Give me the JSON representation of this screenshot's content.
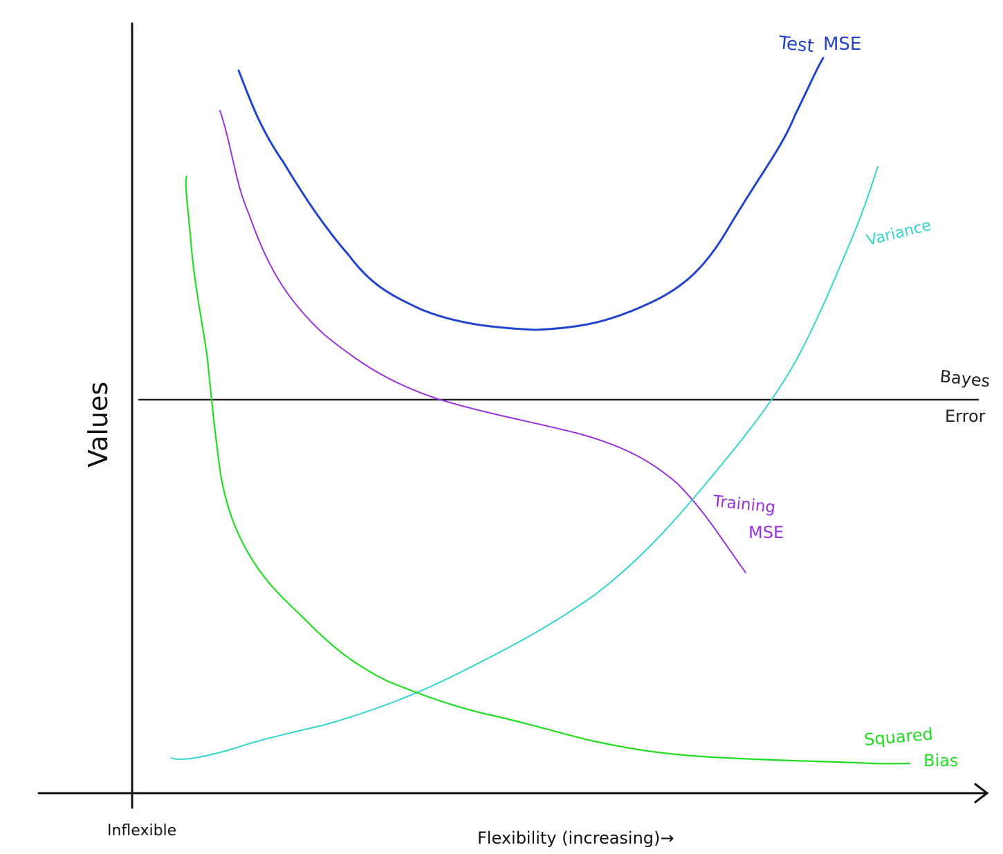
{
  "diagram": {
    "y_axis_label": "Values",
    "x_axis_label": "Flexibility (increasing)→",
    "x_start_label": "Inflexible",
    "curves": {
      "test_mse": {
        "label_line1": "Test",
        "label_line2": "MSE",
        "color": "#2244cc"
      },
      "training_mse": {
        "label_line1": "Training",
        "label_line2": "MSE",
        "color": "#9933dd"
      },
      "variance": {
        "label": "Variance",
        "color": "#33d6cc"
      },
      "squared_bias": {
        "label_line1": "Squared",
        "label_line2": "Bias",
        "color": "#22dd22"
      }
    },
    "bayes_error": {
      "label_line1": "Bayes",
      "label_line2": "Error",
      "color": "#222222"
    },
    "axis_color": "#111111"
  }
}
